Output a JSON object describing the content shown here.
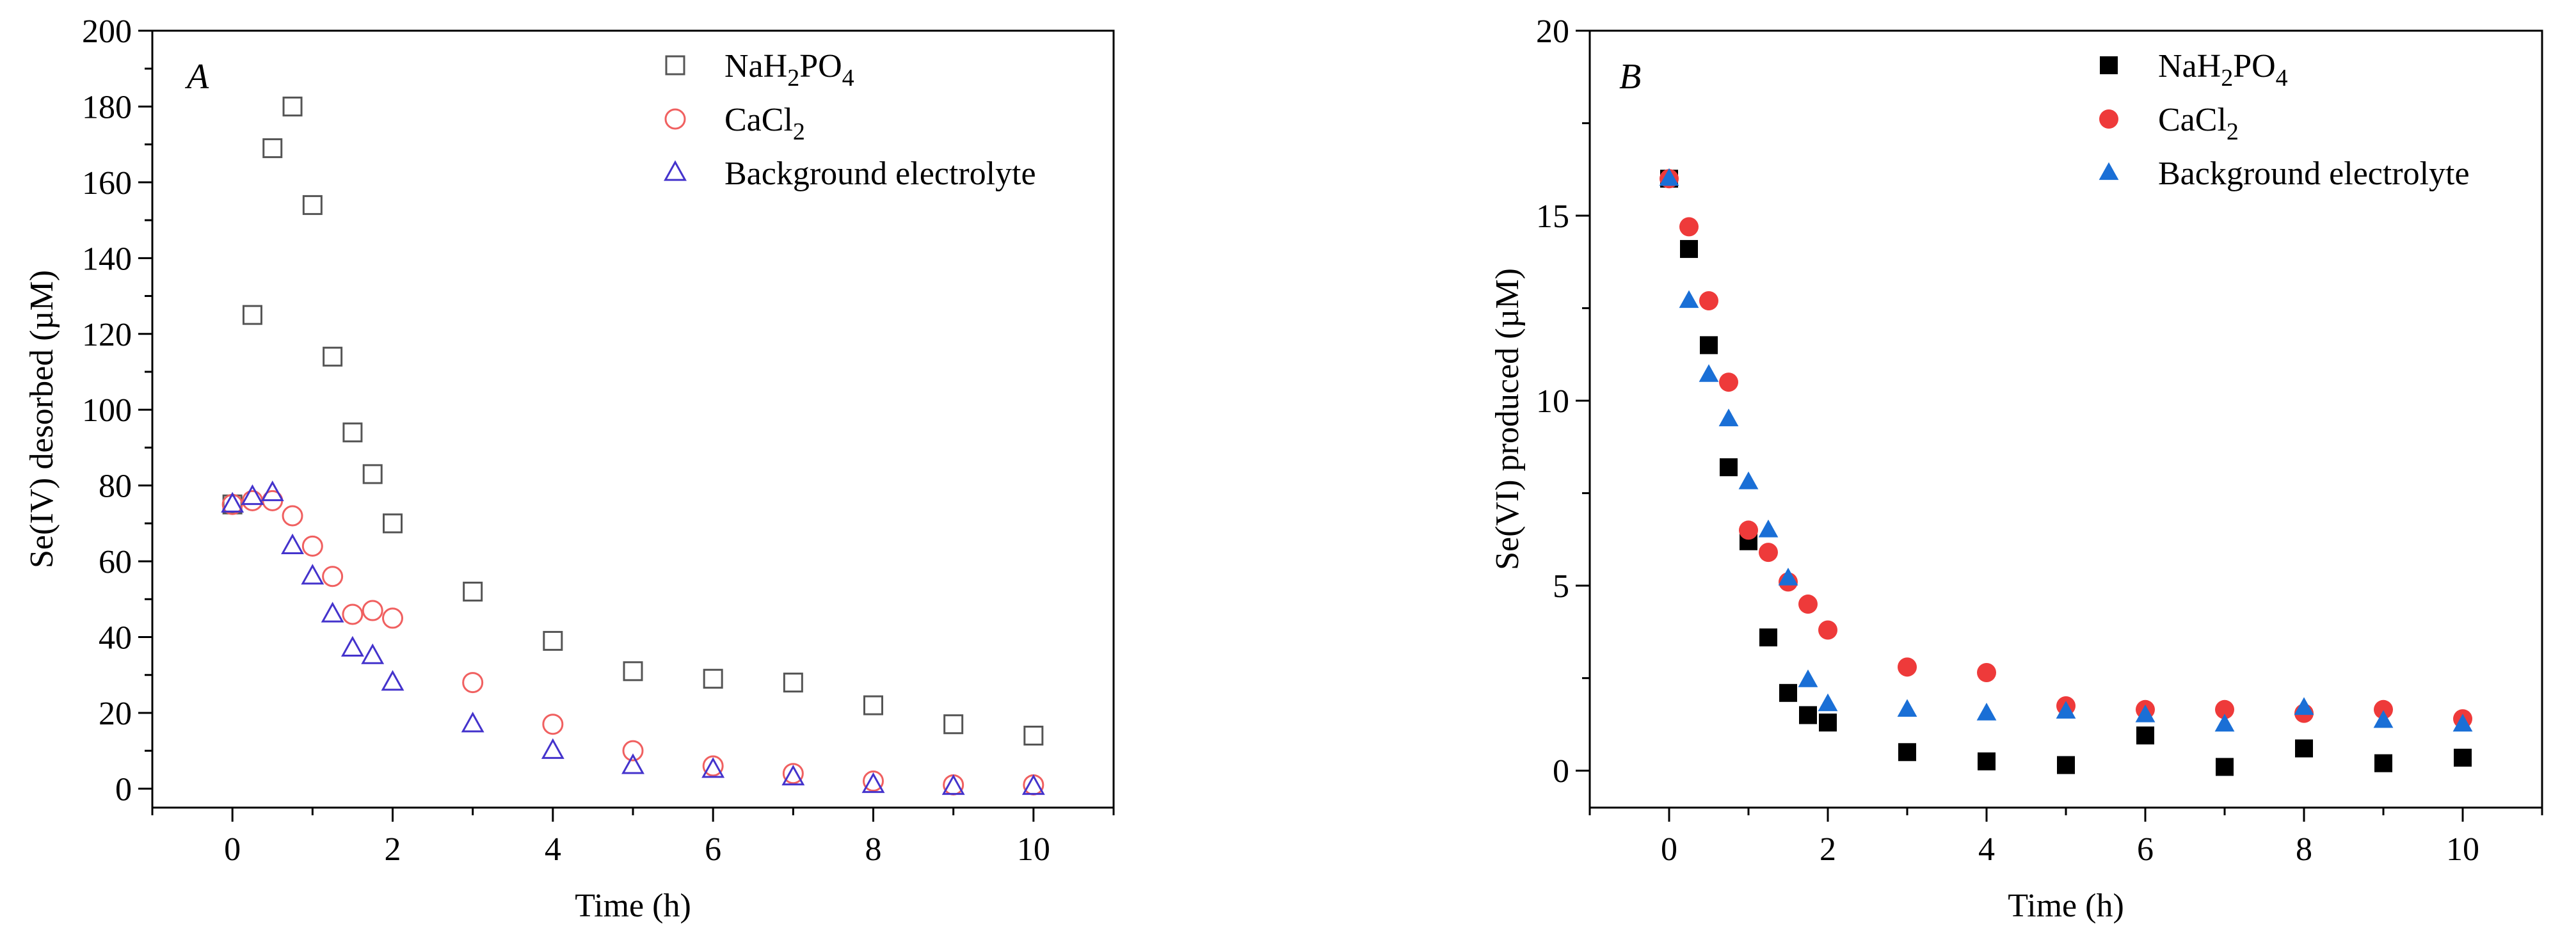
{
  "chart_data": [
    {
      "type": "scatter",
      "panel_label": "A",
      "xlabel": "Time (h)",
      "ylabel": "Se(IV) desorbed (µM)",
      "xlim": [
        -1,
        11
      ],
      "ylim": [
        -5,
        200
      ],
      "xticks": [
        0,
        2,
        4,
        6,
        8,
        10
      ],
      "yticks": [
        0,
        20,
        40,
        60,
        80,
        100,
        120,
        140,
        160,
        180,
        200
      ],
      "xtick_labels": [
        "0",
        "2",
        "4",
        "6",
        "8",
        "10"
      ],
      "ytick_labels": [
        "0",
        "20",
        "40",
        "60",
        "80",
        "100",
        "120",
        "140",
        "160",
        "180",
        "200"
      ],
      "legend_position": "top-right",
      "series": [
        {
          "name": "NaH2PO4",
          "legend_main": "NaH",
          "legend_sub1": "2",
          "legend_mid": "PO",
          "legend_sub2": "4",
          "marker": "square",
          "filled": false,
          "color": "#555555",
          "x": [
            0,
            0.25,
            0.5,
            0.75,
            1,
            1.25,
            1.5,
            1.75,
            2,
            3,
            4,
            5,
            6,
            7,
            8,
            9,
            10
          ],
          "y": [
            75,
            125,
            169,
            180,
            154,
            114,
            94,
            83,
            70,
            52,
            39,
            31,
            29,
            28,
            22,
            17,
            14
          ]
        },
        {
          "name": "CaCl2",
          "legend_main": "CaCl",
          "legend_sub1": "2",
          "legend_mid": "",
          "legend_sub2": "",
          "marker": "circle",
          "filled": false,
          "color": "#f06060",
          "x": [
            0,
            0.25,
            0.5,
            0.75,
            1,
            1.25,
            1.5,
            1.75,
            2,
            3,
            4,
            5,
            6,
            7,
            8,
            9,
            10
          ],
          "y": [
            75,
            76,
            76,
            72,
            64,
            56,
            46,
            47,
            45,
            28,
            17,
            10,
            6,
            4,
            2,
            1,
            1
          ]
        },
        {
          "name": "Background electrolyte",
          "legend_main": "Background electrolyte",
          "legend_sub1": "",
          "legend_mid": "",
          "legend_sub2": "",
          "marker": "triangle",
          "filled": false,
          "color": "#4433cc",
          "x": [
            0,
            0.25,
            0.5,
            0.75,
            1,
            1.25,
            1.5,
            1.75,
            2,
            3,
            4,
            5,
            6,
            7,
            8,
            9,
            10
          ],
          "y": [
            75,
            77,
            78,
            64,
            56,
            46,
            37,
            35,
            28,
            17,
            10,
            6,
            5,
            3,
            1,
            0.5,
            0.5
          ]
        }
      ]
    },
    {
      "type": "scatter",
      "panel_label": "B",
      "xlabel": "Time (h)",
      "ylabel": "Se(VI) produced (µM)",
      "xlim": [
        -1,
        11
      ],
      "ylim": [
        -1,
        20
      ],
      "xticks": [
        0,
        2,
        4,
        6,
        8,
        10
      ],
      "yticks": [
        0,
        5,
        10,
        15,
        20
      ],
      "xtick_labels": [
        "0",
        "2",
        "4",
        "6",
        "8",
        "10"
      ],
      "ytick_labels": [
        "0",
        "5",
        "10",
        "15",
        "20"
      ],
      "legend_position": "top-right",
      "series": [
        {
          "name": "NaH2PO4",
          "legend_main": "NaH",
          "legend_sub1": "2",
          "legend_mid": "PO",
          "legend_sub2": "4",
          "marker": "square",
          "filled": true,
          "color": "#000000",
          "x": [
            0,
            0.25,
            0.5,
            0.75,
            1,
            1.25,
            1.5,
            1.75,
            2,
            3,
            4,
            5,
            6,
            7,
            8,
            9,
            10
          ],
          "y": [
            16,
            14.1,
            11.5,
            8.2,
            6.2,
            3.6,
            2.1,
            1.5,
            1.3,
            0.5,
            0.25,
            0.15,
            0.95,
            0.1,
            0.6,
            0.2,
            0.35
          ]
        },
        {
          "name": "CaCl2",
          "legend_main": "CaCl",
          "legend_sub1": "2",
          "legend_mid": "",
          "legend_sub2": "",
          "marker": "circle",
          "filled": true,
          "color": "#ee3a3a",
          "x": [
            0,
            0.25,
            0.5,
            0.75,
            1,
            1.25,
            1.5,
            1.75,
            2,
            3,
            4,
            5,
            6,
            7,
            8,
            9,
            10
          ],
          "y": [
            16,
            14.7,
            12.7,
            10.5,
            6.5,
            5.9,
            5.1,
            4.5,
            3.8,
            2.8,
            2.65,
            1.75,
            1.65,
            1.65,
            1.55,
            1.65,
            1.4
          ]
        },
        {
          "name": "Background electrolyte",
          "legend_main": "Background electrolyte",
          "legend_sub1": "",
          "legend_mid": "",
          "legend_sub2": "",
          "marker": "triangle",
          "filled": true,
          "color": "#1a6fd6",
          "x": [
            0,
            0.25,
            0.5,
            0.75,
            1,
            1.25,
            1.5,
            1.75,
            2,
            3,
            4,
            5,
            6,
            7,
            8,
            9,
            10
          ],
          "y": [
            16,
            12.7,
            10.7,
            9.5,
            7.8,
            6.5,
            5.2,
            2.45,
            1.8,
            1.65,
            1.55,
            1.6,
            1.5,
            1.25,
            1.7,
            1.35,
            1.25
          ]
        }
      ]
    }
  ]
}
